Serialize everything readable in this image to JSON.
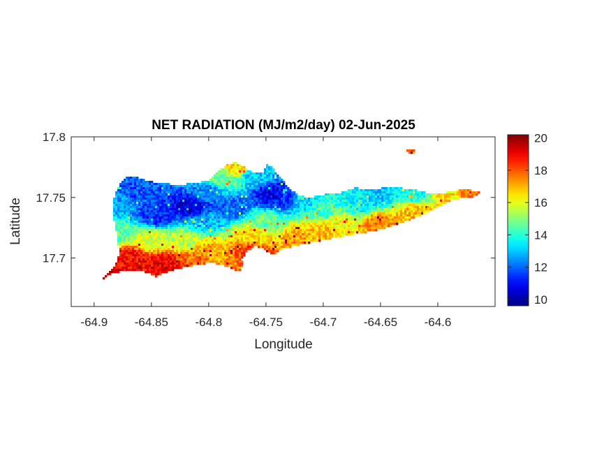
{
  "chart_data": {
    "type": "heatmap",
    "title": "NET RADIATION (MJ/m2/day) 02-Jun-2025",
    "xlabel": "Longitude",
    "ylabel": "Latitude",
    "xlim": [
      -64.92,
      -64.55
    ],
    "ylim": [
      17.66,
      17.8
    ],
    "x_ticks": [
      -64.9,
      -64.85,
      -64.8,
      -64.75,
      -64.7,
      -64.65,
      -64.6
    ],
    "x_tick_labels": [
      "-64.9",
      "-64.85",
      "-64.8",
      "-64.75",
      "-64.7",
      "-64.65",
      "-64.6"
    ],
    "y_ticks": [
      17.7,
      17.75,
      17.8
    ],
    "y_tick_labels": [
      "17.7",
      "17.75",
      "17.8"
    ],
    "colorbar": {
      "colormap": "jet",
      "range": [
        9.6,
        20.2
      ],
      "ticks": [
        10,
        12,
        14,
        16,
        18,
        20
      ],
      "tick_labels": [
        "10",
        "12",
        "14",
        "16",
        "18",
        "20"
      ]
    },
    "grid": false,
    "region_outline": [
      [
        -64.899,
        17.679
      ],
      [
        -64.893,
        17.682
      ],
      [
        -64.885,
        17.69
      ],
      [
        -64.88,
        17.697
      ],
      [
        -64.878,
        17.705
      ],
      [
        -64.88,
        17.718
      ],
      [
        -64.882,
        17.728
      ],
      [
        -64.884,
        17.738
      ],
      [
        -64.884,
        17.745
      ],
      [
        -64.882,
        17.752
      ],
      [
        -64.878,
        17.76
      ],
      [
        -64.873,
        17.766
      ],
      [
        -64.866,
        17.768
      ],
      [
        -64.855,
        17.764
      ],
      [
        -64.845,
        17.762
      ],
      [
        -64.833,
        17.761
      ],
      [
        -64.82,
        17.761
      ],
      [
        -64.81,
        17.762
      ],
      [
        -64.8,
        17.764
      ],
      [
        -64.793,
        17.77
      ],
      [
        -64.786,
        17.776
      ],
      [
        -64.778,
        17.779
      ],
      [
        -64.77,
        17.776
      ],
      [
        -64.762,
        17.771
      ],
      [
        -64.753,
        17.77
      ],
      [
        -64.749,
        17.778
      ],
      [
        -64.744,
        17.774
      ],
      [
        -64.737,
        17.766
      ],
      [
        -64.73,
        17.758
      ],
      [
        -64.722,
        17.752
      ],
      [
        -64.714,
        17.75
      ],
      [
        -64.705,
        17.751
      ],
      [
        -64.697,
        17.753
      ],
      [
        -64.688,
        17.753
      ],
      [
        -64.68,
        17.755
      ],
      [
        -64.673,
        17.758
      ],
      [
        -64.664,
        17.757
      ],
      [
        -64.655,
        17.757
      ],
      [
        -64.646,
        17.758
      ],
      [
        -64.636,
        17.758
      ],
      [
        -64.624,
        17.757
      ],
      [
        -64.614,
        17.755
      ],
      [
        -64.605,
        17.753
      ],
      [
        -64.594,
        17.754
      ],
      [
        -64.583,
        17.756
      ],
      [
        -64.571,
        17.756
      ],
      [
        -64.562,
        17.755
      ],
      [
        -64.567,
        17.751
      ],
      [
        -64.577,
        17.75
      ],
      [
        -64.587,
        17.748
      ],
      [
        -64.596,
        17.744
      ],
      [
        -64.607,
        17.739
      ],
      [
        -64.618,
        17.734
      ],
      [
        -64.629,
        17.73
      ],
      [
        -64.641,
        17.726
      ],
      [
        -64.653,
        17.723
      ],
      [
        -64.665,
        17.721
      ],
      [
        -64.677,
        17.719
      ],
      [
        -64.688,
        17.717
      ],
      [
        -64.7,
        17.715
      ],
      [
        -64.71,
        17.713
      ],
      [
        -64.718,
        17.712
      ],
      [
        -64.728,
        17.709
      ],
      [
        -64.738,
        17.707
      ],
      [
        -64.744,
        17.702
      ],
      [
        -64.751,
        17.707
      ],
      [
        -64.76,
        17.71
      ],
      [
        -64.767,
        17.705
      ],
      [
        -64.771,
        17.699
      ],
      [
        -64.77,
        17.693
      ],
      [
        -64.774,
        17.689
      ],
      [
        -64.782,
        17.692
      ],
      [
        -64.79,
        17.695
      ],
      [
        -64.798,
        17.696
      ],
      [
        -64.808,
        17.695
      ],
      [
        -64.818,
        17.693
      ],
      [
        -64.828,
        17.691
      ],
      [
        -64.838,
        17.688
      ],
      [
        -64.846,
        17.685
      ],
      [
        -64.854,
        17.688
      ],
      [
        -64.865,
        17.69
      ],
      [
        -64.876,
        17.689
      ],
      [
        -64.885,
        17.687
      ],
      [
        -64.895,
        17.681
      ],
      [
        -64.902,
        17.678
      ]
    ],
    "islet_outline": [
      [
        -64.627,
        17.789
      ],
      [
        -64.621,
        17.789
      ],
      [
        -64.62,
        17.786
      ],
      [
        -64.625,
        17.787
      ]
    ],
    "value_anchors": [
      {
        "lon": -64.815,
        "lat": 17.742,
        "value": 10.5
      },
      {
        "lon": -64.845,
        "lat": 17.735,
        "value": 11.3
      },
      {
        "lon": -64.865,
        "lat": 17.755,
        "value": 11.8
      },
      {
        "lon": -64.875,
        "lat": 17.745,
        "value": 12.6
      },
      {
        "lon": -64.745,
        "lat": 17.752,
        "value": 10.8
      },
      {
        "lon": -64.78,
        "lat": 17.742,
        "value": 12.0
      },
      {
        "lon": -64.79,
        "lat": 17.765,
        "value": 14.8
      },
      {
        "lon": -64.775,
        "lat": 17.775,
        "value": 16.5
      },
      {
        "lon": -64.735,
        "lat": 17.75,
        "value": 11.5
      },
      {
        "lon": -64.7,
        "lat": 17.74,
        "value": 14.2
      },
      {
        "lon": -64.67,
        "lat": 17.745,
        "value": 13.5
      },
      {
        "lon": -64.65,
        "lat": 17.752,
        "value": 13.0
      },
      {
        "lon": -64.62,
        "lat": 17.752,
        "value": 13.8
      },
      {
        "lon": -64.59,
        "lat": 17.752,
        "value": 16.5
      },
      {
        "lon": -64.57,
        "lat": 17.754,
        "value": 17.8
      },
      {
        "lon": -64.62,
        "lat": 17.738,
        "value": 17.0
      },
      {
        "lon": -64.65,
        "lat": 17.728,
        "value": 17.6
      },
      {
        "lon": -64.7,
        "lat": 17.722,
        "value": 16.8
      },
      {
        "lon": -64.72,
        "lat": 17.716,
        "value": 17.2
      },
      {
        "lon": -64.76,
        "lat": 17.718,
        "value": 16.5
      },
      {
        "lon": -64.762,
        "lat": 17.705,
        "value": 18.3
      },
      {
        "lon": -64.8,
        "lat": 17.705,
        "value": 17.0
      },
      {
        "lon": -64.82,
        "lat": 17.715,
        "value": 15.5
      },
      {
        "lon": -64.85,
        "lat": 17.715,
        "value": 15.8
      },
      {
        "lon": -64.87,
        "lat": 17.7,
        "value": 18.8
      },
      {
        "lon": -64.84,
        "lat": 17.695,
        "value": 19.0
      },
      {
        "lon": -64.89,
        "lat": 17.685,
        "value": 19.5
      },
      {
        "lon": -64.81,
        "lat": 17.698,
        "value": 17.8
      },
      {
        "lon": -64.88,
        "lat": 17.72,
        "value": 14.5
      },
      {
        "lon": -64.75,
        "lat": 17.73,
        "value": 14.6
      },
      {
        "lon": -64.805,
        "lat": 17.73,
        "value": 12.8
      },
      {
        "lon": -64.715,
        "lat": 17.748,
        "value": 13.2
      },
      {
        "lon": -64.685,
        "lat": 17.728,
        "value": 16.2
      },
      {
        "lon": -64.8,
        "lat": 17.755,
        "value": 12.4
      },
      {
        "lon": -64.76,
        "lat": 17.768,
        "value": 13.0
      },
      {
        "lon": -64.624,
        "lat": 17.788,
        "value": 17.5
      }
    ]
  },
  "colors": {
    "axis": "#262626",
    "background": "#ffffff"
  }
}
